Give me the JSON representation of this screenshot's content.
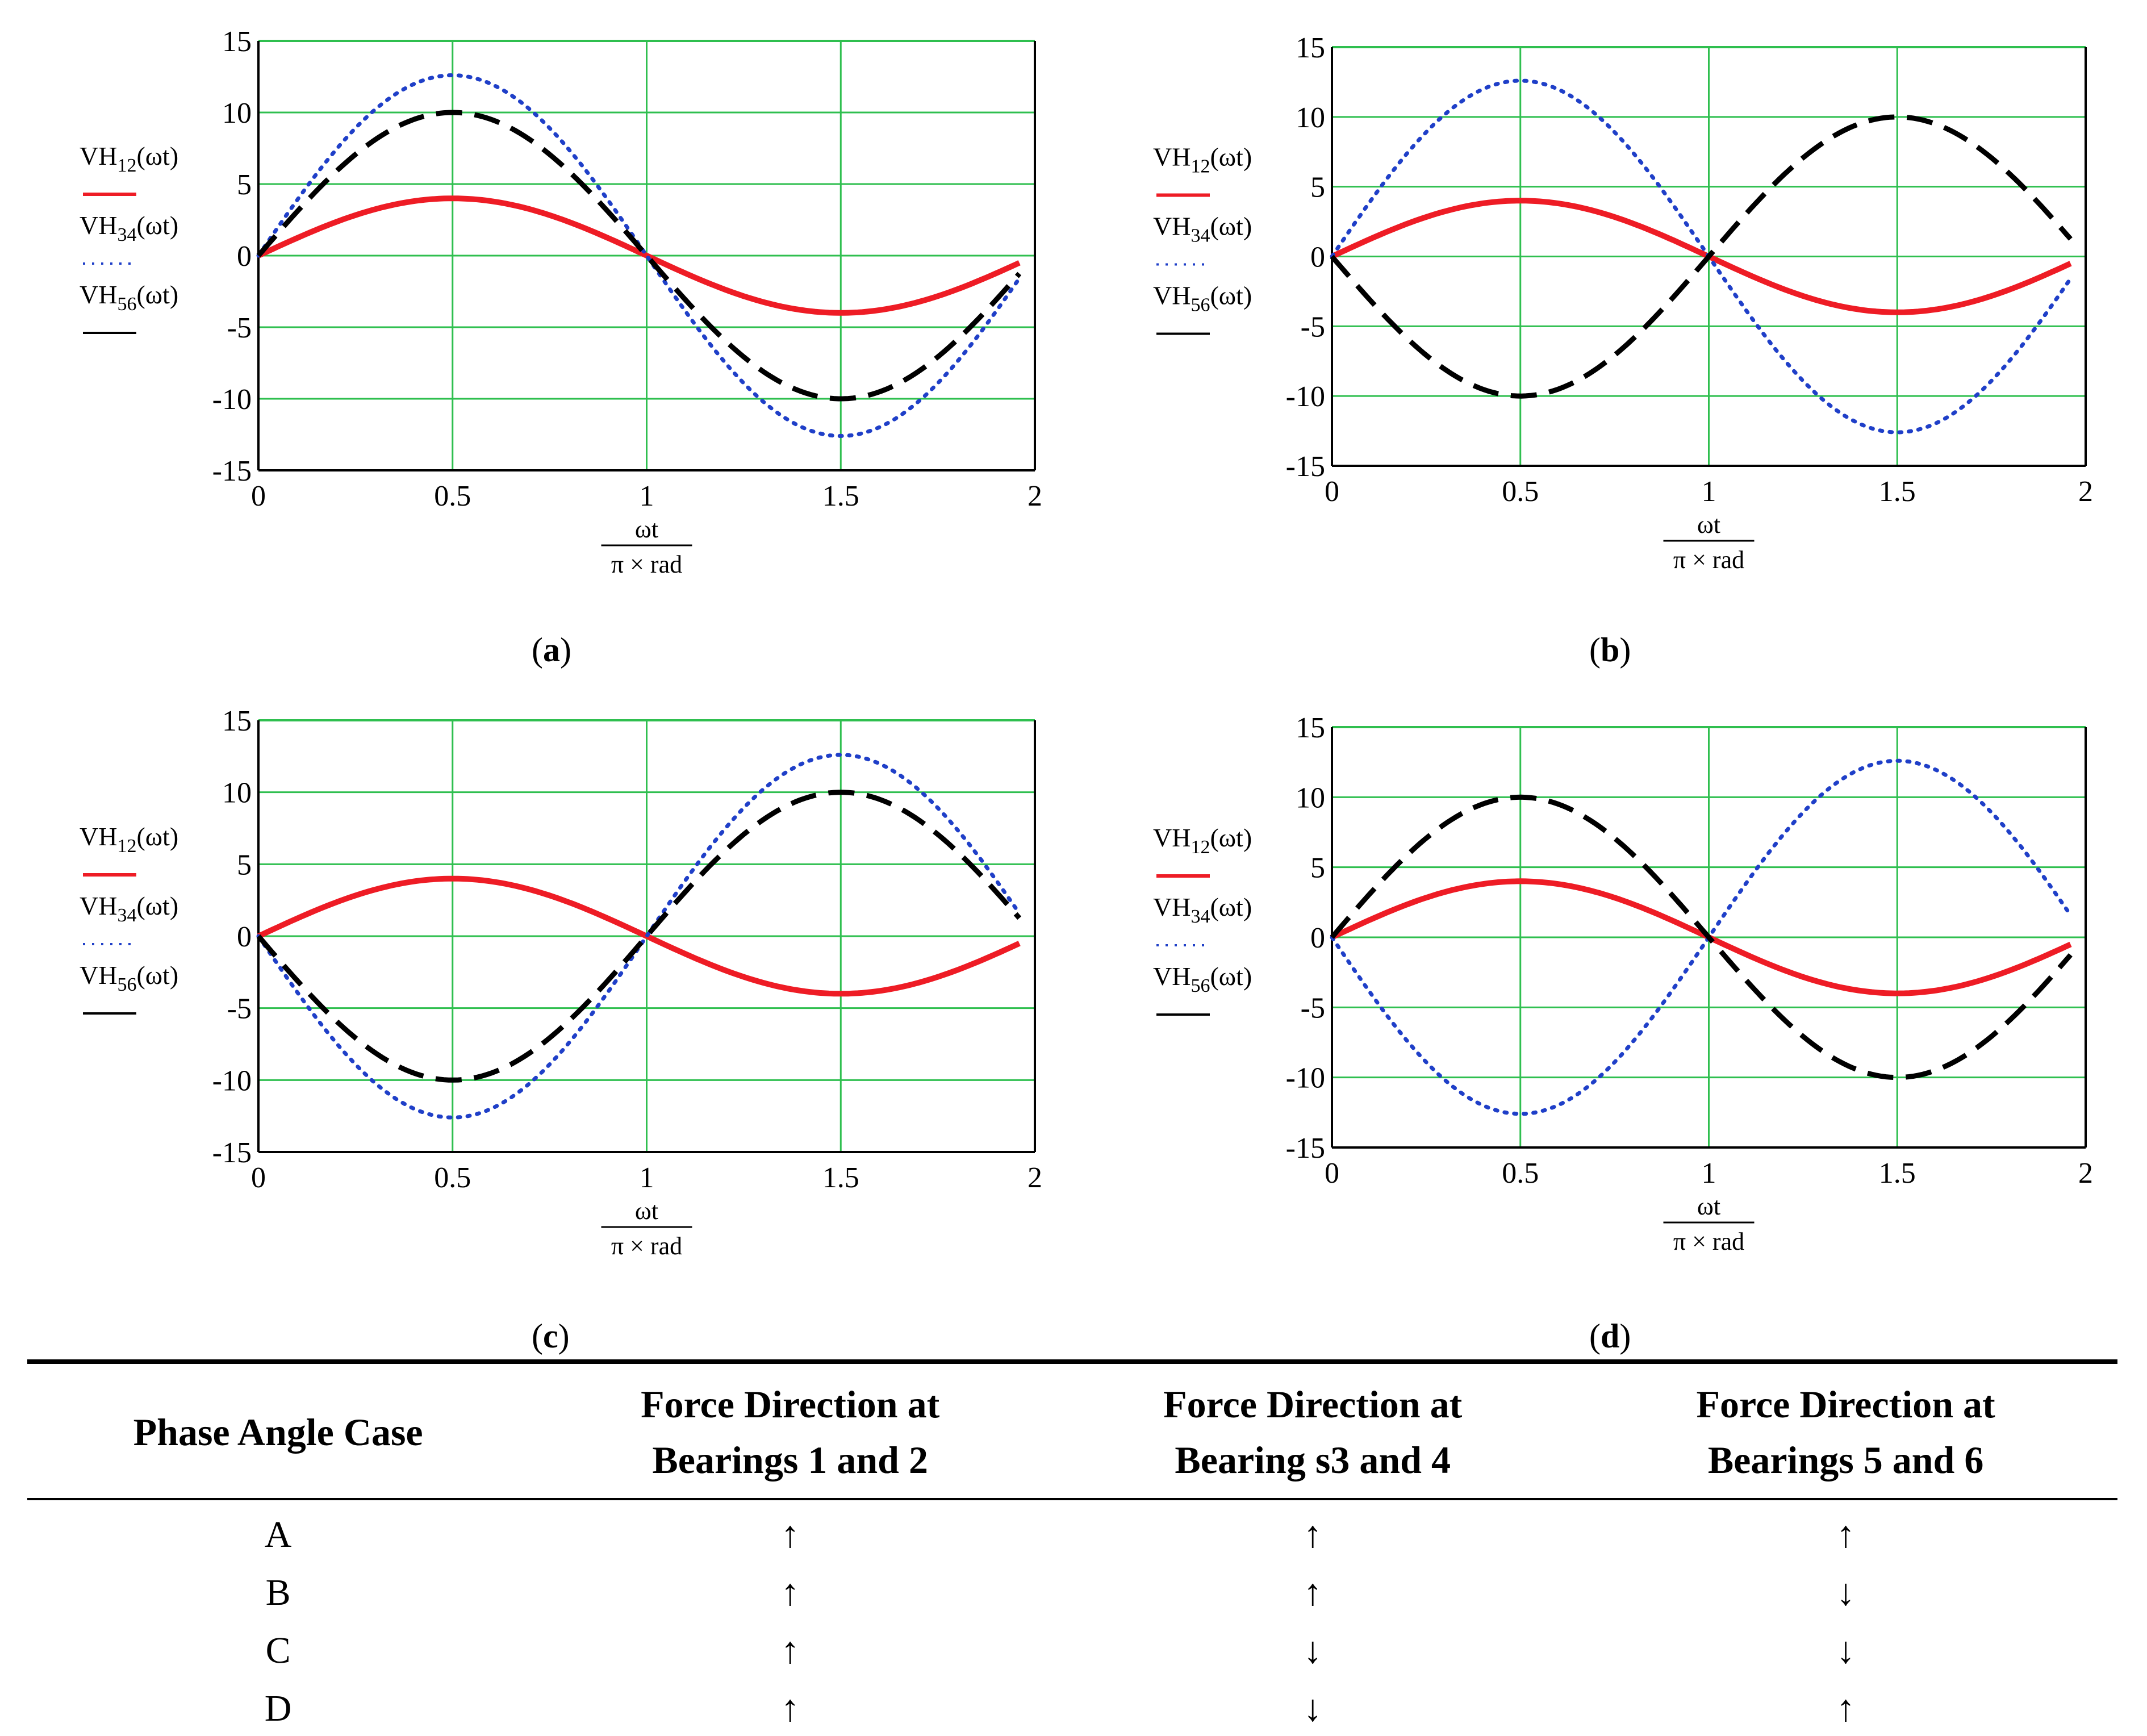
{
  "chart_data": [
    {
      "type": "line",
      "panel": "a",
      "caption": "a",
      "xlabel_num": "ωt",
      "xlabel_den": "π × rad",
      "xticks": [
        "0",
        "0.5",
        "1",
        "1.5",
        "2"
      ],
      "yticks": [
        "15",
        "10",
        "5",
        "0",
        "-5",
        "-10",
        "-15"
      ],
      "xlim": [
        0,
        2
      ],
      "ylim": [
        -15,
        15
      ],
      "grid": true,
      "legend": [
        {
          "name": "VH",
          "sub": "12",
          "arg": "(ωt)",
          "color": "#ee1c25",
          "dash": "solid"
        },
        {
          "name": "VH",
          "sub": "34",
          "arg": "(ωt)",
          "color": "#1f3fc8",
          "dash": "dot"
        },
        {
          "name": "VH",
          "sub": "56",
          "arg": "(ωt)",
          "color": "#000000",
          "dash": "dash"
        }
      ],
      "series": [
        {
          "name": "VH12(ωt)",
          "amplitude": 4,
          "function": "A·sin(π·x)",
          "x": [
            0,
            0.25,
            0.5,
            0.75,
            1,
            1.25,
            1.5,
            1.75,
            1.95
          ],
          "values": [
            0,
            2.8,
            4,
            2.8,
            0,
            -2.8,
            -4,
            -2.8,
            -0.6
          ]
        },
        {
          "name": "VH34(ωt)",
          "amplitude": 12.6,
          "function": "A·sin(π·x)",
          "x": [
            0,
            0.25,
            0.5,
            0.75,
            1,
            1.25,
            1.5,
            1.75,
            1.95
          ],
          "values": [
            0,
            8.9,
            12.6,
            8.9,
            0,
            -8.9,
            -12.6,
            -8.9,
            -2.0
          ]
        },
        {
          "name": "VH56(ωt)",
          "amplitude": 10,
          "function": "A·sin(π·x)",
          "x": [
            0,
            0.25,
            0.5,
            0.75,
            1,
            1.25,
            1.5,
            1.75,
            1.95
          ],
          "values": [
            0,
            7.1,
            10,
            7.1,
            0,
            -7.1,
            -10,
            -7.1,
            -1.6
          ]
        }
      ]
    },
    {
      "type": "line",
      "panel": "b",
      "caption": "b",
      "xlabel_num": "ωt",
      "xlabel_den": "π × rad",
      "xticks": [
        "0",
        "0.5",
        "1",
        "1.5",
        "2"
      ],
      "yticks": [
        "15",
        "10",
        "5",
        "0",
        "-5",
        "-10",
        "-15"
      ],
      "xlim": [
        0,
        2
      ],
      "ylim": [
        -15,
        15
      ],
      "grid": true,
      "legend": [
        {
          "name": "VH",
          "sub": "12",
          "arg": "(ωt)",
          "color": "#ee1c25",
          "dash": "solid"
        },
        {
          "name": "VH",
          "sub": "34",
          "arg": "(ωt)",
          "color": "#1f3fc8",
          "dash": "dot"
        },
        {
          "name": "VH",
          "sub": "56",
          "arg": "(ωt)",
          "color": "#000000",
          "dash": "dash"
        }
      ],
      "series": [
        {
          "name": "VH12(ωt)",
          "amplitude": 4,
          "function": "A·sin(π·x)",
          "x": [
            0,
            0.25,
            0.5,
            0.75,
            1,
            1.25,
            1.5,
            1.75,
            1.95
          ],
          "values": [
            0,
            2.8,
            4,
            2.8,
            0,
            -2.8,
            -4,
            -2.8,
            -0.6
          ]
        },
        {
          "name": "VH34(ωt)",
          "amplitude": 12.6,
          "function": "A·sin(π·x)",
          "x": [
            0,
            0.25,
            0.5,
            0.75,
            1,
            1.25,
            1.5,
            1.75,
            1.95
          ],
          "values": [
            0,
            8.9,
            12.6,
            8.9,
            0,
            -8.9,
            -12.6,
            -8.9,
            -2.0
          ]
        },
        {
          "name": "VH56(ωt)",
          "amplitude": -10,
          "function": "A·sin(π·x)",
          "x": [
            0,
            0.25,
            0.5,
            0.75,
            1,
            1.25,
            1.5,
            1.75,
            1.95
          ],
          "values": [
            0,
            -7.1,
            -10,
            -7.1,
            0,
            7.1,
            10,
            7.1,
            1.6
          ]
        }
      ]
    },
    {
      "type": "line",
      "panel": "c",
      "caption": "c",
      "xlabel_num": "ωt",
      "xlabel_den": "π × rad",
      "xticks": [
        "0",
        "0.5",
        "1",
        "1.5",
        "2"
      ],
      "yticks": [
        "15",
        "10",
        "5",
        "0",
        "-5",
        "-10",
        "-15"
      ],
      "xlim": [
        0,
        2
      ],
      "ylim": [
        -15,
        15
      ],
      "grid": true,
      "legend": [
        {
          "name": "VH",
          "sub": "12",
          "arg": "(ωt)",
          "color": "#ee1c25",
          "dash": "solid"
        },
        {
          "name": "VH",
          "sub": "34",
          "arg": "(ωt)",
          "color": "#1f3fc8",
          "dash": "dot"
        },
        {
          "name": "VH",
          "sub": "56",
          "arg": "(ωt)",
          "color": "#000000",
          "dash": "dash"
        }
      ],
      "series": [
        {
          "name": "VH12(ωt)",
          "amplitude": 4,
          "function": "A·sin(π·x)",
          "x": [
            0,
            0.25,
            0.5,
            0.75,
            1,
            1.25,
            1.5,
            1.75,
            1.95
          ],
          "values": [
            0,
            2.8,
            4,
            2.8,
            0,
            -2.8,
            -4,
            -2.8,
            -0.6
          ]
        },
        {
          "name": "VH34(ωt)",
          "amplitude": -12.6,
          "function": "A·sin(π·x)",
          "x": [
            0,
            0.25,
            0.5,
            0.75,
            1,
            1.25,
            1.5,
            1.75,
            1.95
          ],
          "values": [
            0,
            -8.9,
            -12.6,
            -8.9,
            0,
            8.9,
            12.6,
            8.9,
            2.0
          ]
        },
        {
          "name": "VH56(ωt)",
          "amplitude": -10,
          "function": "A·sin(π·x)",
          "x": [
            0,
            0.25,
            0.5,
            0.75,
            1,
            1.25,
            1.5,
            1.75,
            1.95
          ],
          "values": [
            0,
            -7.1,
            -10,
            -7.1,
            0,
            7.1,
            10,
            7.1,
            1.6
          ]
        }
      ]
    },
    {
      "type": "line",
      "panel": "d",
      "caption": "d",
      "xlabel_num": "ωt",
      "xlabel_den": "π × rad",
      "xticks": [
        "0",
        "0.5",
        "1",
        "1.5",
        "2"
      ],
      "yticks": [
        "15",
        "10",
        "5",
        "0",
        "-5",
        "-10",
        "-15"
      ],
      "xlim": [
        0,
        2
      ],
      "ylim": [
        -15,
        15
      ],
      "grid": true,
      "legend": [
        {
          "name": "VH",
          "sub": "12",
          "arg": "(ωt)",
          "color": "#ee1c25",
          "dash": "solid"
        },
        {
          "name": "VH",
          "sub": "34",
          "arg": "(ωt)",
          "color": "#1f3fc8",
          "dash": "dot"
        },
        {
          "name": "VH",
          "sub": "56",
          "arg": "(ωt)",
          "color": "#000000",
          "dash": "dash"
        }
      ],
      "series": [
        {
          "name": "VH12(ωt)",
          "amplitude": 4,
          "function": "A·sin(π·x)",
          "x": [
            0,
            0.25,
            0.5,
            0.75,
            1,
            1.25,
            1.5,
            1.75,
            1.95
          ],
          "values": [
            0,
            2.8,
            4,
            2.8,
            0,
            -2.8,
            -4,
            -2.8,
            -0.6
          ]
        },
        {
          "name": "VH34(ωt)",
          "amplitude": -12.6,
          "function": "A·sin(π·x)",
          "x": [
            0,
            0.25,
            0.5,
            0.75,
            1,
            1.25,
            1.5,
            1.75,
            1.95
          ],
          "values": [
            0,
            -8.9,
            -12.6,
            -8.9,
            0,
            8.9,
            12.6,
            8.9,
            2.0
          ]
        },
        {
          "name": "VH56(ωt)",
          "amplitude": 10,
          "function": "A·sin(π·x)",
          "x": [
            0,
            0.25,
            0.5,
            0.75,
            1,
            1.25,
            1.5,
            1.75,
            1.95
          ],
          "values": [
            0,
            7.1,
            10,
            7.1,
            0,
            -7.1,
            -10,
            -7.1,
            -1.6
          ]
        }
      ]
    }
  ],
  "table": {
    "headers": [
      {
        "line1": "Phase Angle Case",
        "line2": ""
      },
      {
        "line1": "Force Direction at",
        "line2": "Bearings 1 and 2"
      },
      {
        "line1": "Force Direction at",
        "line2": "Bearing s3 and 4"
      },
      {
        "line1": "Force Direction at",
        "line2": "Bearings 5 and 6"
      }
    ],
    "rows": [
      [
        "A",
        "↑",
        "↑",
        "↑"
      ],
      [
        "B",
        "↑",
        "↑",
        "↓"
      ],
      [
        "C",
        "↑",
        "↓",
        "↓"
      ],
      [
        "D",
        "↑",
        "↓",
        "↑"
      ]
    ]
  },
  "colors": {
    "grid": "#2fbf4f",
    "red": "#ee1c25",
    "blue": "#1f3fc8",
    "black": "#000000"
  }
}
